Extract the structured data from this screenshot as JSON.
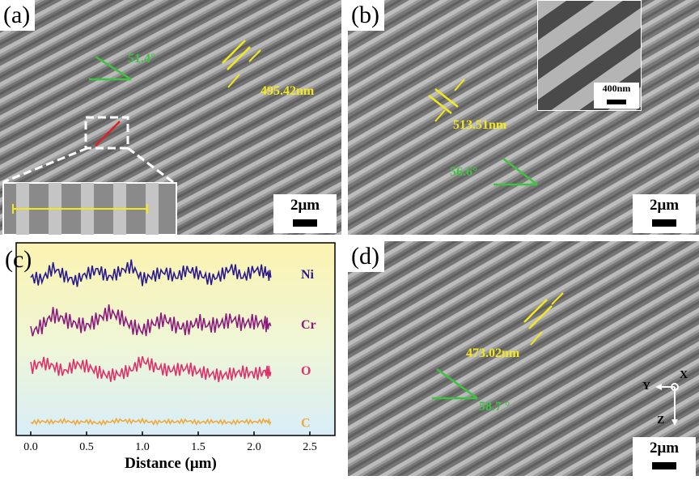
{
  "panels": {
    "a": {
      "label": "(a)",
      "scale": "2μm",
      "period": "495.42nm",
      "angle": "51.4°"
    },
    "b": {
      "label": "(b)",
      "scale": "2μm",
      "period": "513.51nm",
      "angle": "56.6°",
      "inset_scale": "400nm"
    },
    "c": {
      "label": "(c)"
    },
    "d": {
      "label": "(d)",
      "scale": "2μm",
      "period": "473.02nm",
      "angle": "58.7 °",
      "axes": {
        "x": "X",
        "y": "Y",
        "z": "Z"
      }
    }
  },
  "colors": {
    "yellow": "#f4e81c",
    "green": "#3fc23f",
    "Ni": "#2b1a8c",
    "Cr": "#8c1a7c",
    "O": "#e0306a",
    "C": "#f2a83a"
  },
  "chart_data": {
    "type": "line",
    "xlabel": "Distance (μm)",
    "ylabel": "",
    "title": "",
    "xlim": [
      0,
      2.5
    ],
    "xticks": [
      "0.0",
      "0.5",
      "1.0",
      "1.5",
      "2.0",
      "2.5"
    ],
    "x": [
      0.0,
      0.1,
      0.2,
      0.3,
      0.4,
      0.5,
      0.6,
      0.7,
      0.8,
      0.9,
      1.0,
      1.1,
      1.2,
      1.3,
      1.4,
      1.5,
      1.6,
      1.7,
      1.8,
      1.9,
      2.0,
      2.1,
      2.15
    ],
    "series": [
      {
        "name": "Ni",
        "offset": 0.84,
        "amp": 0.1,
        "values": [
          0.2,
          0.1,
          0.7,
          0.3,
          0.0,
          0.4,
          0.6,
          0.2,
          0.5,
          0.8,
          0.1,
          0.3,
          0.5,
          0.2,
          0.6,
          0.4,
          0.1,
          0.3,
          0.7,
          0.2,
          0.6,
          0.5,
          0.2
        ]
      },
      {
        "name": "Cr",
        "offset": 0.58,
        "amp": 0.12,
        "values": [
          0.0,
          0.3,
          0.8,
          0.6,
          0.4,
          0.3,
          0.6,
          0.9,
          0.7,
          0.3,
          0.1,
          0.4,
          0.6,
          0.3,
          0.2,
          0.5,
          0.3,
          0.4,
          0.6,
          0.4,
          0.5,
          0.4,
          0.3
        ]
      },
      {
        "name": "O",
        "offset": 0.34,
        "amp": 0.1,
        "values": [
          0.5,
          0.8,
          0.6,
          0.3,
          0.7,
          0.6,
          0.3,
          0.1,
          0.2,
          0.4,
          0.9,
          0.6,
          0.4,
          0.4,
          0.5,
          0.3,
          0.2,
          0.1,
          0.2,
          0.3,
          0.2,
          0.3,
          0.3
        ]
      },
      {
        "name": "C",
        "offset": 0.07,
        "amp": 0.03,
        "values": [
          0.3,
          0.5,
          0.4,
          0.6,
          0.3,
          0.5,
          0.2,
          0.4,
          0.7,
          0.5,
          0.6,
          0.3,
          0.5,
          0.4,
          0.6,
          0.3,
          0.5,
          0.4,
          0.3,
          0.5,
          0.4,
          0.6,
          0.4
        ]
      }
    ],
    "series_labels": [
      "Ni",
      "Cr",
      "O",
      "C"
    ],
    "legend": "right"
  }
}
